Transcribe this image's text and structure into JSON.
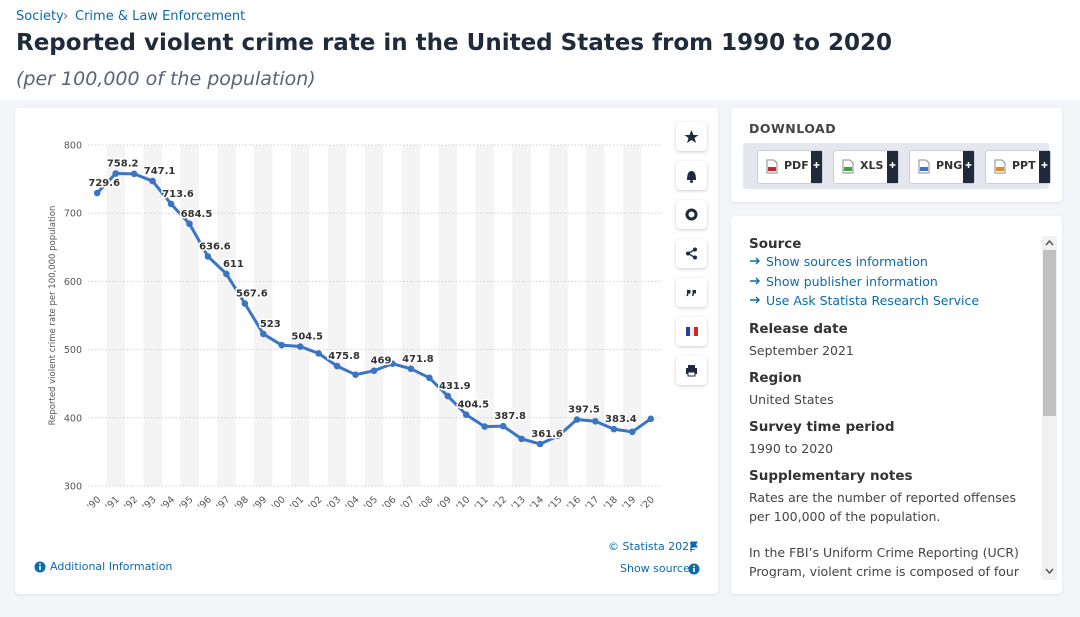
{
  "breadcrumb": [
    "Society",
    "Crime & Law Enforcement"
  ],
  "title": "Reported violent crime rate in the United States from 1990 to 2020",
  "subtitle": "(per 100,000 of the population)",
  "chart_data": {
    "type": "line",
    "y_label": "Reported violent crime rate per 100,000 population",
    "categories": [
      "'90",
      "'91",
      "'92",
      "'93",
      "'94",
      "'95",
      "'96",
      "'97",
      "'98",
      "'99",
      "'00",
      "'01",
      "'02",
      "'03",
      "'04",
      "'05",
      "'06",
      "'07",
      "'08",
      "'09",
      "'10",
      "'11",
      "'12",
      "'13",
      "'14",
      "'15",
      "'16",
      "'17",
      "'18",
      "'19",
      "'20"
    ],
    "values": [
      729.6,
      758.2,
      757.7,
      747.1,
      713.6,
      684.5,
      636.6,
      611,
      567.6,
      523,
      506.5,
      504.5,
      494.4,
      475.8,
      463.2,
      469,
      479.3,
      471.8,
      458.6,
      431.9,
      404.5,
      387.1,
      387.8,
      369.1,
      361.6,
      373.7,
      397.5,
      394.9,
      383.4,
      379.4,
      398.5
    ],
    "value_labels": [
      "729.6",
      "758.2",
      null,
      "747.1",
      "713.6",
      "684.5",
      "636.6",
      "611",
      "567.6",
      "523",
      null,
      "504.5",
      null,
      "475.8",
      null,
      "469",
      null,
      "471.8",
      null,
      "431.9",
      "404.5",
      null,
      "387.8",
      null,
      "361.6",
      null,
      "397.5",
      null,
      "383.4",
      null,
      null
    ],
    "color": "#3a75c4",
    "ylim": [
      300,
      800
    ],
    "yticks": [
      300,
      400,
      500,
      600,
      700,
      800
    ],
    "grid": true
  },
  "chart_footer": {
    "copyright": "© Statista 2022",
    "additional_info": "Additional Information",
    "show_source": "Show source"
  },
  "download": {
    "heading": "DOWNLOAD",
    "formats": [
      "PDF",
      "XLS",
      "PNG",
      "PPT"
    ]
  },
  "info": {
    "sections": [
      {
        "heading": "Source",
        "links": [
          "Show sources information",
          "Show publisher information",
          "Use Ask Statista Research Service"
        ]
      },
      {
        "heading": "Release date",
        "texts": [
          "September 2021"
        ]
      },
      {
        "heading": "Region",
        "texts": [
          "United States"
        ]
      },
      {
        "heading": "Survey time period",
        "texts": [
          "1990 to 2020"
        ]
      },
      {
        "heading": "Supplementary notes",
        "texts": [
          "Rates are the number of reported offenses per 100,000 of the population.",
          "In the FBI’s Uniform Crime Reporting (UCR) Program, violent crime is composed of four"
        ]
      }
    ]
  }
}
